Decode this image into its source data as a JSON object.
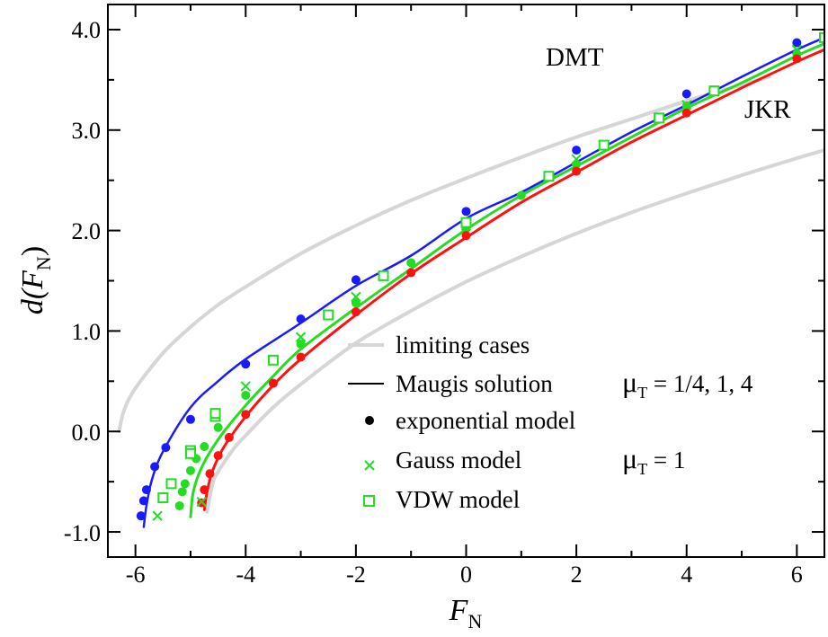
{
  "chart_data": {
    "type": "scatter",
    "title": "",
    "xlabel": {
      "main": "F",
      "sub": "N"
    },
    "ylabel": {
      "pre": "d(",
      "main": "F",
      "sub": "N",
      "post": ")"
    },
    "xlim": [
      -6.5,
      6.5
    ],
    "ylim": [
      -1.25,
      4.25
    ],
    "x_ticks": [
      -6,
      -4,
      -2,
      0,
      2,
      4,
      6
    ],
    "x_tick_labels": [
      "-6",
      "-4",
      "-2",
      "0",
      "2",
      "4",
      "6"
    ],
    "y_ticks": [
      -1,
      0,
      1,
      2,
      3,
      4
    ],
    "y_tick_labels": [
      "-1.0",
      "0.0",
      "1.0",
      "2.0",
      "3.0",
      "4.0"
    ],
    "grid": false,
    "annotations": [
      "DMT",
      "JKR"
    ],
    "colors": {
      "blue": "#1a1aff",
      "green": "#22dd22",
      "red": "#ff1111",
      "gray": "#d6d6d6"
    },
    "lines": [
      {
        "name": "DMT",
        "color": "#d6d6d6",
        "width": 4,
        "x": [
          -6.3,
          -6.2,
          -6.0,
          -5.5,
          -5.0,
          -4.5,
          -4.0,
          -3.0,
          -2.0,
          -1.0,
          0.0,
          1.0,
          2.0,
          3.0,
          4.0,
          5.0,
          5.5
        ],
        "y": [
          0.0,
          0.22,
          0.43,
          0.78,
          1.04,
          1.26,
          1.44,
          1.77,
          2.05,
          2.3,
          2.52,
          2.73,
          2.93,
          3.11,
          3.29,
          3.45,
          3.53
        ]
      },
      {
        "name": "JKR",
        "color": "#d6d6d6",
        "width": 4,
        "x": [
          -4.7,
          -4.6,
          -4.5,
          -4.2,
          -4.0,
          -3.5,
          -3.0,
          -2.0,
          -1.0,
          0.0,
          1.0,
          2.0,
          3.0,
          4.0,
          5.0,
          6.0,
          6.5
        ],
        "y": [
          -0.8,
          -0.52,
          -0.4,
          -0.16,
          -0.04,
          0.24,
          0.47,
          0.88,
          1.2,
          1.49,
          1.74,
          1.97,
          2.18,
          2.37,
          2.55,
          2.72,
          2.8
        ]
      },
      {
        "name": "Maugis mu=1/4",
        "color": "#1a1aff",
        "width": 2.5,
        "x": [
          -5.85,
          -5.8,
          -5.7,
          -5.5,
          -5.0,
          -4.5,
          -4.0,
          -3.0,
          -2.0,
          -1.0,
          0.0,
          1.0,
          2.0,
          3.0,
          4.0,
          5.0,
          6.0,
          6.5
        ],
        "y": [
          -0.95,
          -0.74,
          -0.48,
          -0.2,
          0.24,
          0.5,
          0.72,
          1.08,
          1.45,
          1.75,
          2.12,
          2.38,
          2.68,
          2.98,
          3.25,
          3.53,
          3.8,
          3.92
        ]
      },
      {
        "name": "Maugis mu=1",
        "color": "#22dd22",
        "width": 3,
        "x": [
          -5.0,
          -4.95,
          -4.8,
          -4.5,
          -4.0,
          -3.5,
          -3.0,
          -2.0,
          -1.0,
          0.0,
          1.0,
          2.0,
          3.0,
          4.0,
          5.0,
          6.0,
          6.5
        ],
        "y": [
          -0.85,
          -0.6,
          -0.36,
          -0.08,
          0.26,
          0.55,
          0.82,
          1.23,
          1.62,
          2.01,
          2.35,
          2.64,
          2.93,
          3.22,
          3.47,
          3.74,
          3.86
        ]
      },
      {
        "name": "Maugis mu=4",
        "color": "#ff1111",
        "width": 3,
        "x": [
          -4.75,
          -4.7,
          -4.6,
          -4.4,
          -4.0,
          -3.5,
          -3.0,
          -2.0,
          -1.0,
          0.0,
          1.0,
          2.0,
          3.0,
          4.0,
          5.0,
          6.0,
          6.5
        ],
        "y": [
          -0.78,
          -0.6,
          -0.39,
          -0.16,
          0.15,
          0.46,
          0.72,
          1.16,
          1.57,
          1.93,
          2.28,
          2.58,
          2.88,
          3.15,
          3.42,
          3.68,
          3.8
        ]
      }
    ],
    "series": [
      {
        "name": "exponential model mu=1/4",
        "marker": "dot",
        "color": "#1a1aff",
        "x": [
          -5.9,
          -5.85,
          -5.8,
          -5.65,
          -5.45,
          -5.0,
          -4.0,
          -3.0,
          -2.0,
          0.0,
          2.0,
          4.0,
          6.0
        ],
        "y": [
          -0.84,
          -0.69,
          -0.58,
          -0.35,
          -0.16,
          0.12,
          0.67,
          1.12,
          1.51,
          2.19,
          2.8,
          3.36,
          3.87
        ]
      },
      {
        "name": "exponential model mu=1",
        "marker": "dot",
        "color": "#22dd22",
        "x": [
          -5.2,
          -5.15,
          -5.1,
          -5.0,
          -4.9,
          -4.75,
          -4.5,
          -4.0,
          -3.0,
          -2.0,
          -1.0,
          0.0,
          1.0,
          2.0,
          4.0,
          6.0
        ],
        "y": [
          -0.74,
          -0.6,
          -0.52,
          -0.39,
          -0.27,
          -0.15,
          0.04,
          0.36,
          0.87,
          1.28,
          1.68,
          2.02,
          2.35,
          2.66,
          3.24,
          3.76
        ]
      },
      {
        "name": "exponential model mu=4",
        "marker": "dot",
        "color": "#ff1111",
        "x": [
          -4.8,
          -4.75,
          -4.65,
          -4.5,
          -4.3,
          -4.0,
          -3.5,
          -3.0,
          -2.0,
          -1.0,
          0.0,
          2.0,
          4.0,
          6.0
        ],
        "y": [
          -0.71,
          -0.58,
          -0.42,
          -0.24,
          -0.06,
          0.17,
          0.48,
          0.74,
          1.19,
          1.58,
          1.95,
          2.59,
          3.17,
          3.71
        ]
      },
      {
        "name": "Gauss model",
        "marker": "x",
        "color": "#22dd22",
        "x": [
          -5.6,
          -4.8,
          -4.0,
          -3.0,
          -2.0,
          0.0,
          2.0,
          4.0,
          6.0
        ],
        "y": [
          -0.84,
          -0.7,
          0.45,
          0.94,
          1.34,
          2.05,
          2.71,
          3.25,
          3.8
        ]
      },
      {
        "name": "VDW model",
        "marker": "square",
        "color": "#22dd22",
        "x": [
          -5.5,
          -5.35,
          -5.0,
          -5.0,
          -4.55,
          -4.55,
          -3.5,
          -2.5,
          -1.5,
          0.0,
          1.5,
          2.5,
          3.5,
          4.5,
          6.5
        ],
        "y": [
          -0.66,
          -0.52,
          -0.19,
          -0.22,
          0.15,
          0.18,
          0.71,
          1.16,
          1.55,
          2.08,
          2.54,
          2.85,
          3.12,
          3.39,
          3.92
        ]
      }
    ],
    "legend": {
      "position": "center-right",
      "entries": [
        {
          "kind": "gray-line",
          "label": "limiting cases"
        },
        {
          "kind": "black-line",
          "label": "Maugis solution",
          "note": {
            "symbol": "μ",
            "sub": "T",
            "text": " = 1/4, 1, 4"
          }
        },
        {
          "kind": "black-dot",
          "label": "exponential model"
        },
        {
          "kind": "green-x",
          "label": "Gauss model",
          "note": {
            "symbol": "μ",
            "sub": "T",
            "text": " = 1"
          }
        },
        {
          "kind": "green-square",
          "label": "VDW model"
        }
      ]
    }
  }
}
